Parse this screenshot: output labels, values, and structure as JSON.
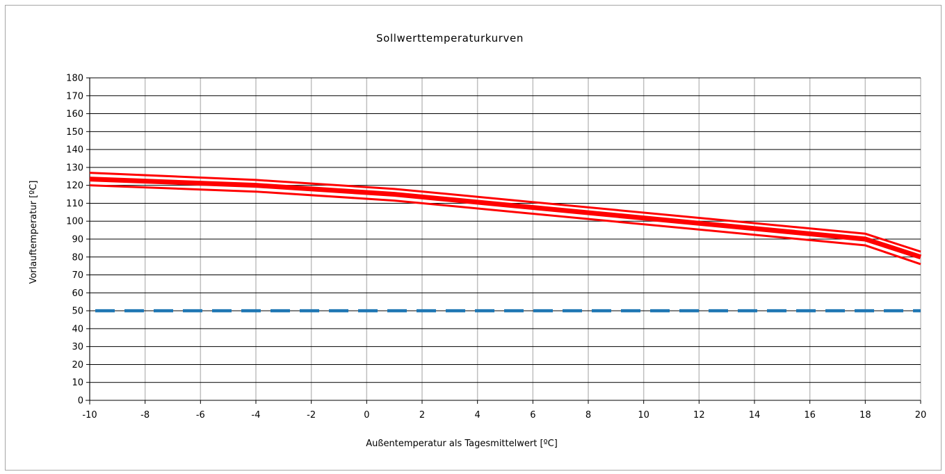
{
  "chart_data": {
    "type": "line",
    "title": "Sollwerttemperaturkurven",
    "xlabel": "Außentemperatur als Tagesmittelwert [ºC]",
    "ylabel": "Vorlauftemperatur [ºC]",
    "xlim": [
      -10,
      20
    ],
    "ylim": [
      0,
      180
    ],
    "x_ticks": [
      "-10",
      "-8",
      "-6",
      "-4",
      "-2",
      "0",
      "2",
      "4",
      "6",
      "8",
      "10",
      "12",
      "14",
      "16",
      "18",
      "20"
    ],
    "y_ticks": [
      "0",
      "10",
      "20",
      "30",
      "40",
      "50",
      "60",
      "70",
      "80",
      "90",
      "100",
      "110",
      "120",
      "130",
      "140",
      "150",
      "160",
      "170",
      "180"
    ],
    "grid": {
      "vertical": true,
      "horizontal": true
    },
    "colors": {
      "red_series": "#ff0000",
      "dashed_series": "#1f77b4",
      "vgrid": "#bfbfbf",
      "hgrid": "#000000"
    },
    "series": [
      {
        "color": "#ff0000",
        "style": "solid",
        "width": "thin",
        "x": [
          -10,
          -4,
          1,
          18,
          20
        ],
        "y": [
          127,
          123,
          118,
          93,
          83
        ]
      },
      {
        "color": "#ff0000",
        "style": "solid",
        "width": "thick",
        "x": [
          -10,
          -4,
          1,
          18,
          20
        ],
        "y": [
          123.5,
          120,
          115,
          90,
          80
        ]
      },
      {
        "color": "#ff0000",
        "style": "solid",
        "width": "thin",
        "x": [
          -10,
          -4,
          1,
          18,
          20
        ],
        "y": [
          120,
          116.5,
          111.5,
          86.5,
          76
        ]
      },
      {
        "color": "#1f77b4",
        "style": "dashed",
        "width": "medium",
        "x": [
          -10,
          20
        ],
        "y": [
          50,
          50
        ]
      }
    ]
  }
}
